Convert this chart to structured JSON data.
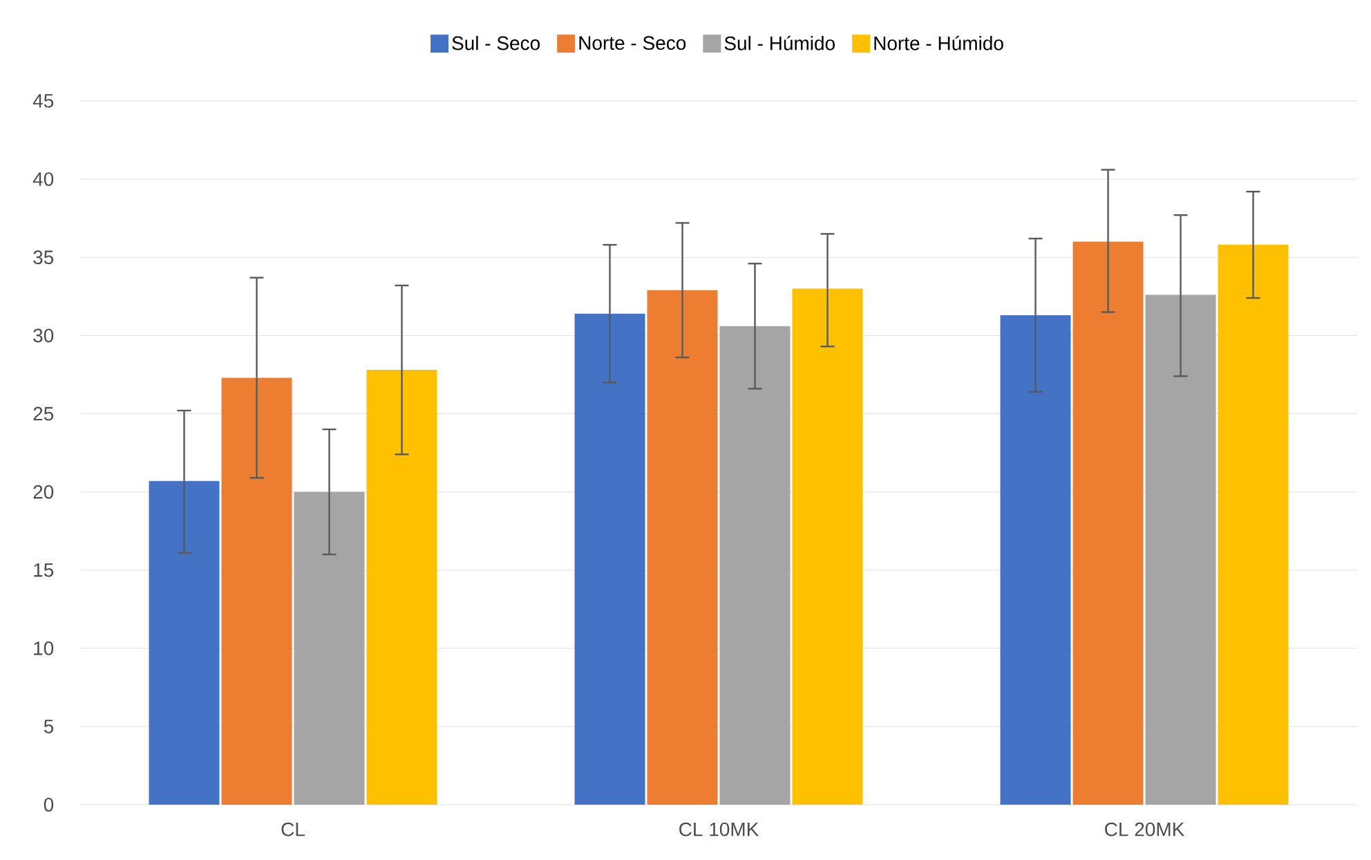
{
  "chart_data": {
    "type": "bar",
    "categories": [
      "CL",
      "CL  10MK",
      "CL  20MK"
    ],
    "series": [
      {
        "name": "Sul - Seco",
        "color": "#4472c4",
        "values": [
          20.7,
          31.4,
          31.3
        ],
        "errors": [
          [
            16.1,
            25.2
          ],
          [
            27.0,
            35.8
          ],
          [
            26.4,
            36.2
          ]
        ]
      },
      {
        "name": "Norte - Seco",
        "color": "#ed7d31",
        "values": [
          27.3,
          32.9,
          36.0
        ],
        "errors": [
          [
            20.9,
            33.7
          ],
          [
            28.6,
            37.2
          ],
          [
            31.5,
            40.6
          ]
        ]
      },
      {
        "name": "Sul - Húmido",
        "color": "#a5a5a5",
        "values": [
          20.0,
          30.6,
          32.6
        ],
        "errors": [
          [
            16.0,
            24.0
          ],
          [
            26.6,
            34.6
          ],
          [
            27.4,
            37.7
          ]
        ]
      },
      {
        "name": "Norte - Húmido",
        "color": "#ffc000",
        "values": [
          27.8,
          33.0,
          35.8
        ],
        "errors": [
          [
            22.4,
            33.2
          ],
          [
            29.3,
            36.5
          ],
          [
            32.4,
            39.2
          ]
        ]
      }
    ],
    "ylim": [
      0,
      45
    ],
    "yticks": [
      0,
      5,
      10,
      15,
      20,
      25,
      30,
      35,
      40,
      45
    ],
    "grid": "y",
    "legend": "top"
  }
}
